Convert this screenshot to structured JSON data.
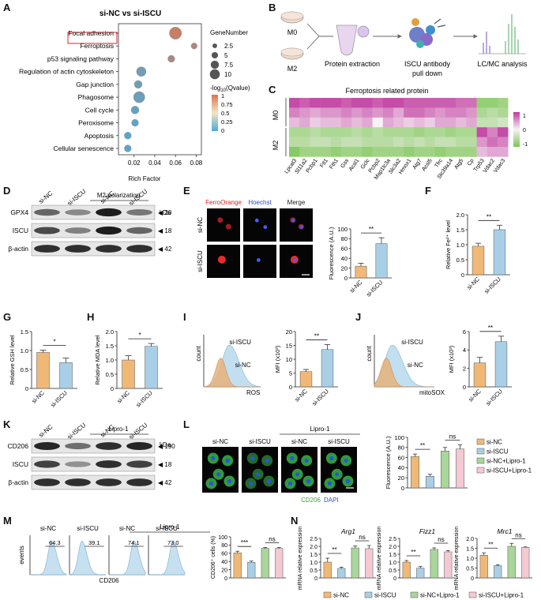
{
  "panels": {
    "A": "A",
    "B": "B",
    "C": "C",
    "D": "D",
    "E": "E",
    "F": "F",
    "G": "G",
    "H": "H",
    "I": "I",
    "J": "J",
    "K": "K",
    "L": "L",
    "M": "M",
    "N": "N"
  },
  "colors": {
    "siNC": "#f0b877",
    "siISCU": "#a9cfe6",
    "siNC_lipro": "#a9d69a",
    "siISCU_lipro": "#f4c9d2",
    "heat_high": "#c0399e",
    "heat_low": "#7cc653",
    "bubble_high": "#d9774f",
    "bubble_low": "#4ea9d8"
  },
  "panelA": {
    "title": "si-NC vs si-ISCU",
    "highlighted": "Ferroptosis",
    "xlabel": "Rich Factor",
    "xticks": [
      "0.02",
      "0.04",
      "0.06",
      "0.08"
    ],
    "legend_size_title": "GeneNumber",
    "legend_sizes": [
      "2.5",
      "5",
      "7.5",
      "10"
    ],
    "legend_color_title": "-log",
    "legend_color_sub": "10",
    "legend_color_suffix": "(Qvalue)",
    "legend_color_ticks": [
      "1",
      "0.75",
      "0.5",
      "0.25",
      "0"
    ]
  },
  "chart_data": [
    {
      "panel": "A",
      "type": "scatter",
      "categories": [
        "Focal adhesion",
        "Ferroptosis",
        "p53 signaling pathway",
        "Regulation of actin cytoskeleton",
        "Gap junction",
        "Phagosome",
        "Cell cycle",
        "Peroxisome",
        "Apoptosis",
        "Cellular senescence"
      ],
      "rich_factor": [
        0.06,
        0.078,
        0.056,
        0.027,
        0.024,
        0.025,
        0.021,
        0.021,
        0.014,
        0.014
      ],
      "gene_number": [
        10,
        3,
        4,
        7,
        5,
        9,
        5,
        4,
        4,
        4
      ],
      "neg_log10_q": [
        0.85,
        0.72,
        0.62,
        0.25,
        0.22,
        0.22,
        0.15,
        0.12,
        0.08,
        0.08
      ],
      "xlim": [
        0.005,
        0.085
      ]
    },
    {
      "panel": "E",
      "type": "bar",
      "categories": [
        "si-NC",
        "si-ISCU"
      ],
      "values": [
        24,
        70
      ],
      "errors": [
        6,
        12
      ],
      "ylabel": "Fluorescence (A.U.)",
      "ylim": [
        0,
        100
      ],
      "yticks": [
        "0",
        "20",
        "40",
        "60",
        "80",
        "100"
      ],
      "sig": "**"
    },
    {
      "panel": "F",
      "type": "bar",
      "categories": [
        "si-NC",
        "si-ISCU"
      ],
      "values": [
        0.95,
        1.5
      ],
      "errors": [
        0.1,
        0.15
      ],
      "ylabel": "Relative Fe²⁺ level",
      "ylim": [
        0,
        2.0
      ],
      "yticks": [
        "0",
        "0.5",
        "1.0",
        "1.5",
        "2.0"
      ],
      "sig": "**"
    },
    {
      "panel": "G",
      "type": "bar",
      "categories": [
        "si-NC",
        "si-ISCU"
      ],
      "values": [
        0.95,
        0.68
      ],
      "errors": [
        0.06,
        0.12
      ],
      "ylabel": "Relative GSH level",
      "ylim": [
        0,
        1.5
      ],
      "yticks": [
        "0",
        "0.5",
        "1.0",
        "1.5"
      ],
      "sig": "*"
    },
    {
      "panel": "H",
      "type": "bar",
      "categories": [
        "si-NC",
        "si-ISCU"
      ],
      "values": [
        1.0,
        1.48
      ],
      "errors": [
        0.15,
        0.1
      ],
      "ylabel": "Relative MDA level",
      "ylim": [
        0,
        2.0
      ],
      "yticks": [
        "0",
        "0.5",
        "1.0",
        "1.5",
        "2.0"
      ],
      "sig": "*"
    },
    {
      "panel": "I",
      "type": "bar",
      "categories": [
        "si-NC",
        "si-ISCU"
      ],
      "values": [
        5.5,
        13.5
      ],
      "errors": [
        0.8,
        1.8
      ],
      "ylabel": "MFI (x10³)",
      "ylim": [
        0,
        20
      ],
      "yticks": [
        "0",
        "5",
        "10",
        "15",
        "20"
      ],
      "sig": "**"
    },
    {
      "panel": "J",
      "type": "bar",
      "categories": [
        "si-NC",
        "si-ISCU"
      ],
      "values": [
        2.6,
        4.9
      ],
      "errors": [
        0.6,
        0.6
      ],
      "ylabel": "MFI (x10³)",
      "ylim": [
        0,
        6
      ],
      "yticks": [
        "0",
        "2",
        "4",
        "6"
      ],
      "sig": "**"
    },
    {
      "panel": "L",
      "type": "bar",
      "categories": [
        "si-NC",
        "si-ISCU",
        "si-NC+Lipro-1",
        "si-ISCU+Lipro-1"
      ],
      "values": [
        62,
        23,
        73,
        77
      ],
      "errors": [
        5,
        4,
        7,
        8
      ],
      "ylabel": "Fluorescence (A.U.)",
      "ylim": [
        0,
        100
      ],
      "yticks": [
        "0",
        "20",
        "40",
        "60",
        "80",
        "100"
      ],
      "sig": [
        "**",
        "ns"
      ]
    },
    {
      "panel": "M",
      "type": "bar",
      "categories": [
        "si-NC",
        "si-ISCU",
        "si-NC+Lipro-1",
        "si-ISCU+Lipro-1"
      ],
      "values": [
        61,
        38,
        72,
        72
      ],
      "errors": [
        4,
        3,
        2,
        2
      ],
      "ylabel": "CD206⁺ cells (%)",
      "ylim": [
        0,
        100
      ],
      "yticks": [
        "0",
        "20",
        "40",
        "60",
        "80",
        "100"
      ],
      "sig": [
        "***",
        "ns"
      ]
    },
    {
      "panel": "N",
      "type": "bar",
      "title": "Arg1",
      "categories": [
        "si-NC",
        "si-ISCU",
        "si-NC+Lipro-1",
        "si-ISCU+Lipro-1"
      ],
      "values": [
        1.0,
        0.6,
        1.9,
        1.85
      ],
      "errors": [
        0.25,
        0.08,
        0.12,
        0.2
      ],
      "ylabel": "mRNA relative expression",
      "ylim": [
        0,
        2.5
      ],
      "yticks": [
        "0",
        "0.5",
        "1.0",
        "1.5",
        "2.0",
        "2.5"
      ],
      "sig": [
        "**",
        "ns"
      ]
    },
    {
      "panel": "N",
      "type": "bar",
      "title": "Fizz1",
      "categories": [
        "si-NC",
        "si-ISCU",
        "si-NC+Lipro-1",
        "si-ISCU+Lipro-1"
      ],
      "values": [
        1.0,
        0.62,
        1.8,
        1.65
      ],
      "errors": [
        0.1,
        0.1,
        0.1,
        0.08
      ],
      "ylabel": "mRNA relative expression",
      "ylim": [
        0,
        2.5
      ],
      "yticks": [
        "0",
        "0.5",
        "1.0",
        "1.5",
        "2.0",
        "2.5"
      ],
      "sig": [
        "**",
        "ns"
      ]
    },
    {
      "panel": "N",
      "type": "bar",
      "title": "Mrc1",
      "categories": [
        "si-NC",
        "si-ISCU",
        "si-NC+Lipro-1",
        "si-ISCU+Lipro-1"
      ],
      "values": [
        1.15,
        0.62,
        1.6,
        1.55
      ],
      "errors": [
        0.12,
        0.05,
        0.15,
        0.02
      ],
      "ylabel": "mRNA relative expression",
      "ylim": [
        0,
        2.0
      ],
      "yticks": [
        "0",
        "0.5",
        "1.0",
        "1.5",
        "2.0"
      ],
      "sig": [
        "**",
        "ns"
      ]
    },
    {
      "panel": "C",
      "type": "heatmap",
      "title": "Ferroptosis related protein",
      "rows": [
        "M0",
        "M0",
        "M0",
        "M2",
        "M2",
        "M2"
      ],
      "columns": [
        "Lpcat3",
        "Sl11a2",
        "Pcbp1",
        "Ftl1",
        "Fth1",
        "Gss",
        "Acsl1",
        "Gclc",
        "Pcbp2",
        "Map1lc3a",
        "Slc3a2",
        "Hmox1",
        "Atg7",
        "Acsl5",
        "Tfrc",
        "Slc39a14",
        "Atg5",
        "Cp",
        "Trp53",
        "Vdac2",
        "Vdac3"
      ],
      "values": [
        [
          0.9,
          0.8,
          0.9,
          0.9,
          0.9,
          0.8,
          0.9,
          0.9,
          0.8,
          0.9,
          0.9,
          0.8,
          0.8,
          0.8,
          0.8,
          0.8,
          0.7,
          0.7,
          -0.8,
          -0.8,
          -0.7
        ],
        [
          0.6,
          0.5,
          0.4,
          0.5,
          0.5,
          0.6,
          0.5,
          0.6,
          0.5,
          0.6,
          0.4,
          0.7,
          0.7,
          0.6,
          0.5,
          0.6,
          0.6,
          0.5,
          -0.6,
          -0.5,
          -0.6
        ],
        [
          0.3,
          0.4,
          0.2,
          0.3,
          0.3,
          0.4,
          0.3,
          0.4,
          0.0,
          0.4,
          0.3,
          0.2,
          0.3,
          0.2,
          0.4,
          0.4,
          0.3,
          0.4,
          -0.4,
          -0.4,
          -0.3
        ],
        [
          -0.6,
          -0.6,
          -0.5,
          -0.6,
          -0.6,
          -0.6,
          -0.5,
          -0.6,
          -0.5,
          -0.6,
          -0.6,
          -0.6,
          -0.7,
          -0.6,
          -0.6,
          -0.7,
          -0.6,
          -0.6,
          0.9,
          0.6,
          0.9
        ],
        [
          -0.5,
          -0.5,
          -0.4,
          -0.4,
          -0.5,
          -0.4,
          -0.4,
          -0.5,
          -0.5,
          -0.5,
          -0.4,
          -0.5,
          -0.4,
          -0.5,
          -0.4,
          -0.4,
          -0.5,
          -0.5,
          0.5,
          0.7,
          0.6
        ],
        [
          -0.9,
          -0.7,
          -0.7,
          -0.7,
          -0.8,
          -0.7,
          -0.7,
          -0.8,
          -0.7,
          -0.7,
          -0.7,
          -0.8,
          -0.7,
          -0.7,
          -0.8,
          -0.7,
          -0.7,
          -0.7,
          0.3,
          0.4,
          0.4
        ]
      ],
      "legend_ticks": [
        "1",
        "0",
        "-1"
      ]
    },
    {
      "panel": "M",
      "type": "histogram",
      "samples": [
        "si-NC",
        "si-ISCU",
        "si-NC",
        "si-ISCU"
      ],
      "percent": [
        64.3,
        39.1,
        74.1,
        73.0
      ]
    }
  ],
  "panelB": {
    "m0": "M0",
    "m2": "M2",
    "step1": "Protein extraction",
    "step2a": "ISCU antibody",
    "step2b": "pull down",
    "step3": "LC/MC analysis"
  },
  "panelD": {
    "header": "M2 polarization",
    "lanes": [
      "si-NC",
      "si-ISCU",
      "si-NC",
      "si-ISCU"
    ],
    "rows": [
      "GPX4",
      "ISCU",
      "β-actin"
    ],
    "kda_label": "kDa",
    "kda": [
      "20",
      "18",
      "42"
    ],
    "intensities": [
      [
        0.55,
        0.35,
        0.95,
        0.45
      ],
      [
        0.7,
        0.4,
        0.95,
        0.55
      ],
      [
        0.85,
        0.85,
        0.85,
        0.85
      ]
    ]
  },
  "panelE": {
    "channels": [
      "FerroOrange",
      "Hoechst",
      "Merge"
    ],
    "rows": [
      "si-NC",
      "si-ISCU"
    ]
  },
  "panelI": {
    "top": "si-ISCU",
    "bottom": "si-NC",
    "ylabel": "count",
    "xlabel": "ROS"
  },
  "panelJ": {
    "top": "si-ISCU",
    "bottom": "si-NC",
    "ylabel": "count",
    "xlabel": "mitoSOX"
  },
  "panelK": {
    "header": "Lipro-1",
    "lanes": [
      "si-NC",
      "si-ISCU",
      "si-NC",
      "si-ISCU"
    ],
    "rows": [
      "CD206",
      "ISCU",
      "β-actin"
    ],
    "kda_label": "kDa",
    "kda": [
      "190",
      "18",
      "42"
    ],
    "intensities": [
      [
        0.9,
        0.5,
        0.85,
        0.9
      ],
      [
        0.75,
        0.3,
        0.85,
        0.75
      ],
      [
        0.85,
        0.85,
        0.85,
        0.85
      ]
    ]
  },
  "panelL": {
    "header": "Lipro-1",
    "labels": [
      "si-NC",
      "si-ISCU",
      "si-NC",
      "si-ISCU"
    ],
    "stain1": "CD206",
    "stain2": "DAPI"
  },
  "panelM": {
    "header": "Lipro-1",
    "ylabel": "events",
    "xlabel": "CD206"
  },
  "legend4": [
    "si-NC",
    "si-ISCU",
    "si-NC+Lipro-1",
    "si-ISCU+Lipro-1"
  ]
}
